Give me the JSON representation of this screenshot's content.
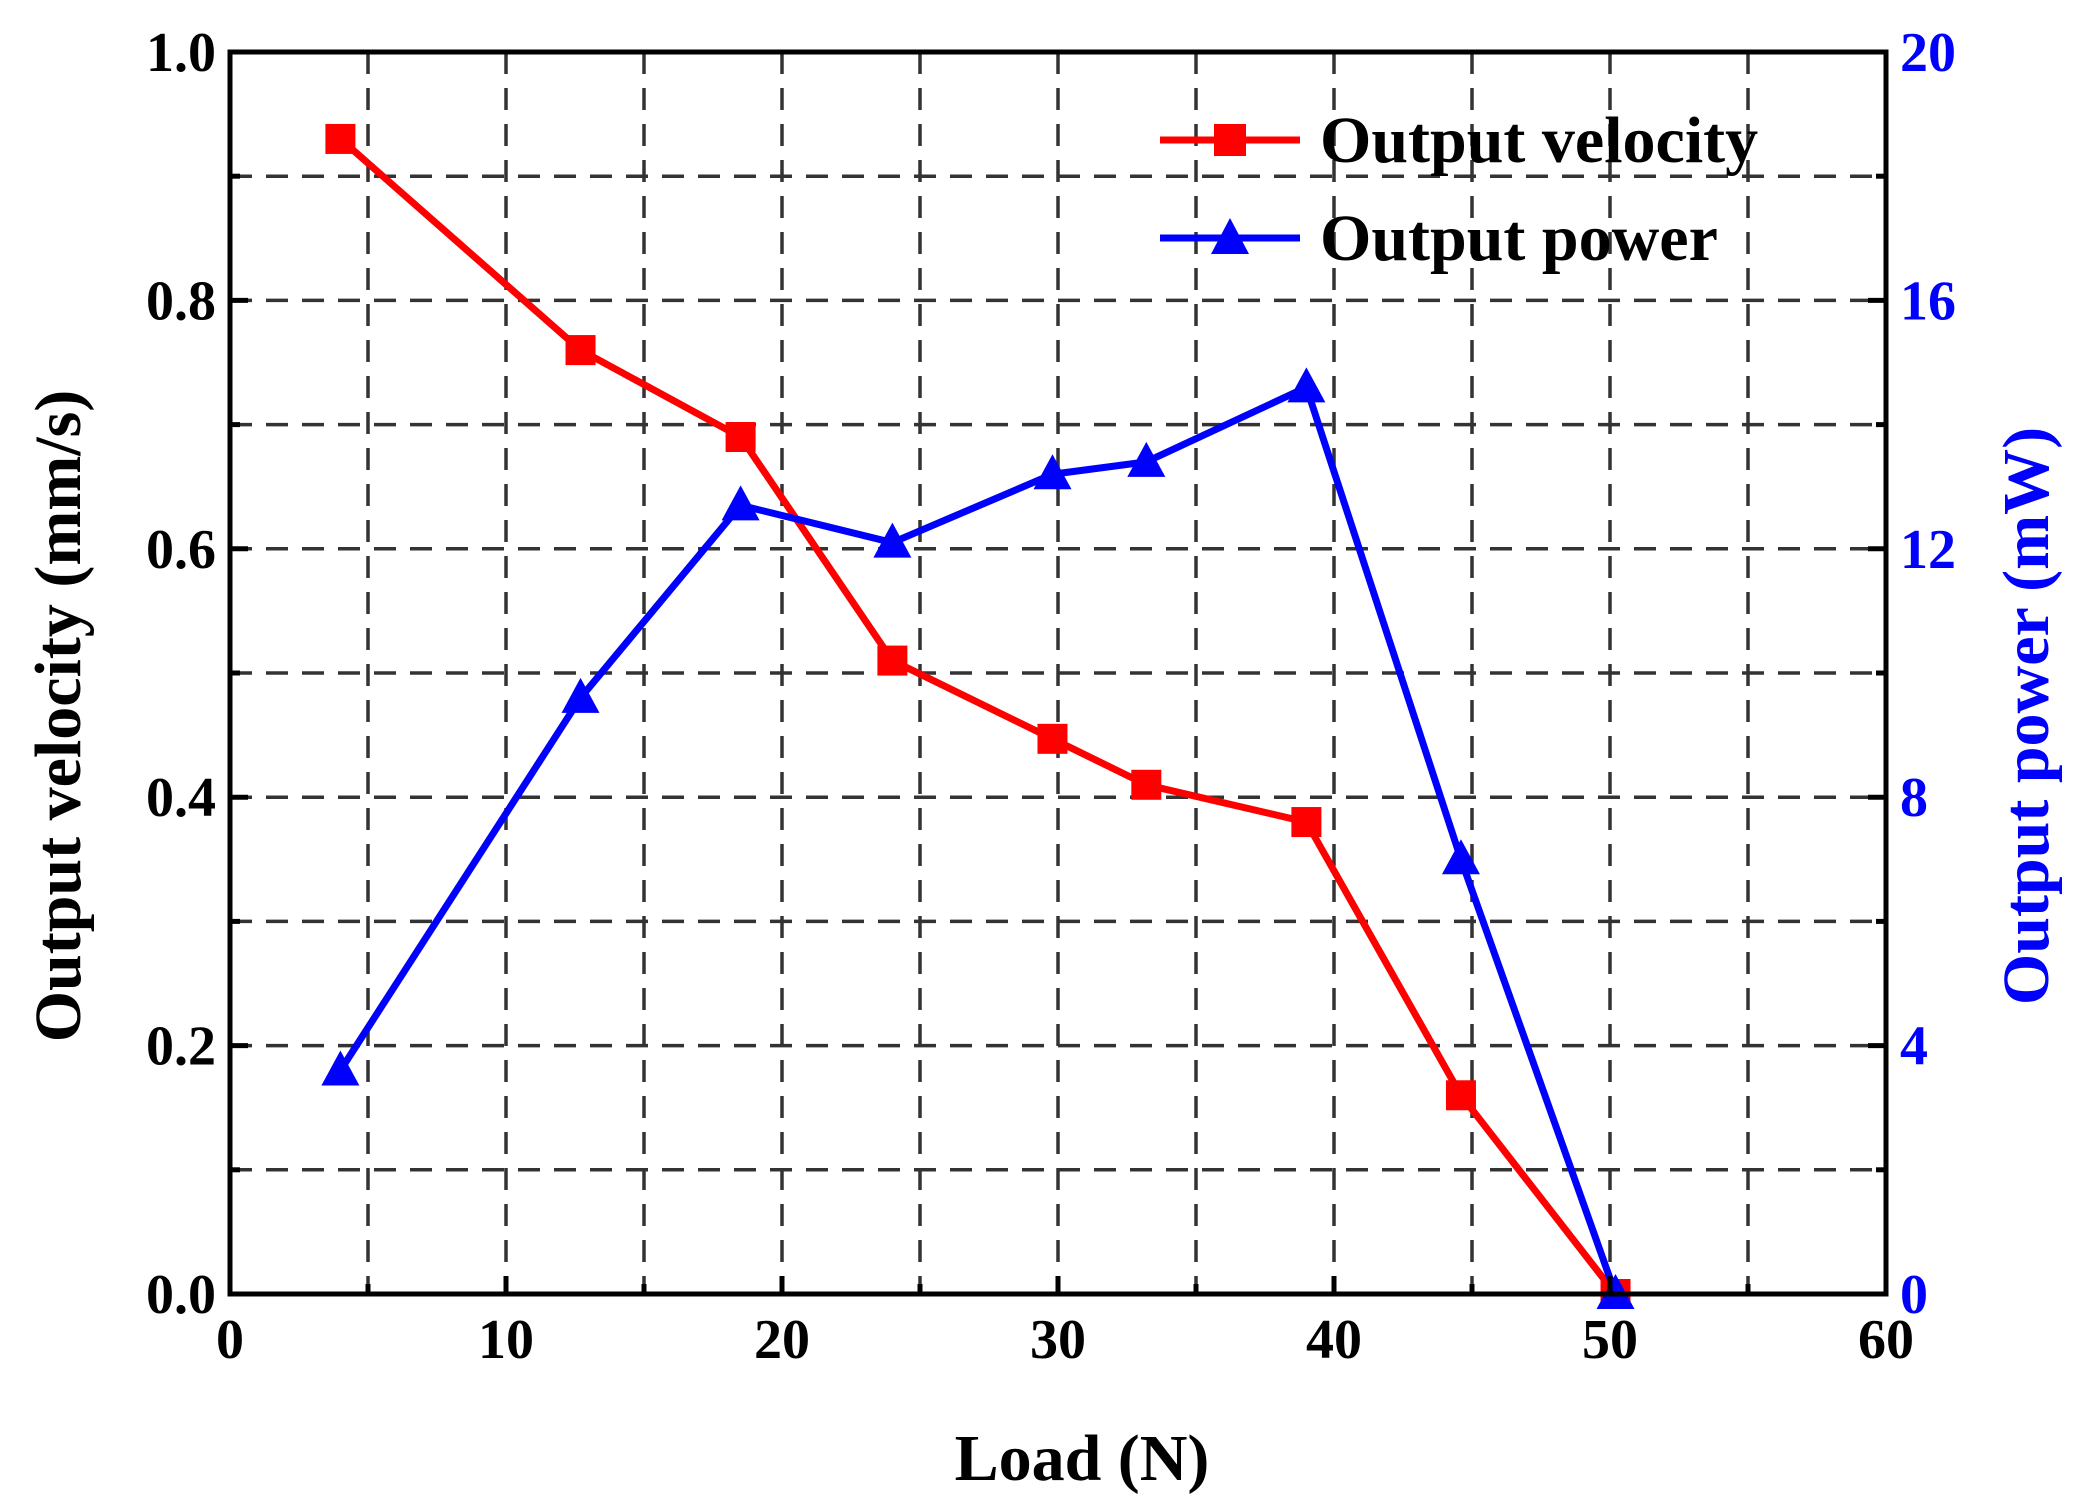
{
  "chart_data": {
    "type": "line",
    "title": "",
    "xlabel": "Load (N)",
    "ylabel_left": "Output velocity (mm/s)",
    "ylabel_right": "Output power (mW)",
    "xlim": [
      0,
      60
    ],
    "ylim_left": [
      0,
      1.0
    ],
    "ylim_right": [
      0,
      20
    ],
    "x_ticks": [
      "0",
      "10",
      "20",
      "30",
      "40",
      "50",
      "60"
    ],
    "y_left_ticks": [
      "0.0",
      "0.2",
      "0.4",
      "0.6",
      "0.8",
      "1.0"
    ],
    "y_right_ticks": [
      "0",
      "4",
      "8",
      "12",
      "16",
      "20"
    ],
    "grid": true,
    "legend_position": "top-right",
    "series": [
      {
        "name": "Output velocity",
        "axis": "left",
        "color": "#ff0000",
        "marker": "square",
        "x": [
          4,
          12.7,
          18.5,
          24,
          29.8,
          33.2,
          39,
          44.6,
          50.2
        ],
        "values": [
          0.93,
          0.76,
          0.69,
          0.51,
          0.447,
          0.41,
          0.38,
          0.16,
          0.0
        ]
      },
      {
        "name": "Output power",
        "axis": "right",
        "color": "#0000ff",
        "marker": "triangle",
        "x": [
          4,
          12.7,
          18.5,
          24,
          29.8,
          33.2,
          39,
          44.6,
          50.2
        ],
        "values": [
          3.6,
          9.6,
          12.7,
          12.1,
          13.2,
          13.4,
          14.6,
          7.0,
          0.0
        ]
      }
    ]
  }
}
